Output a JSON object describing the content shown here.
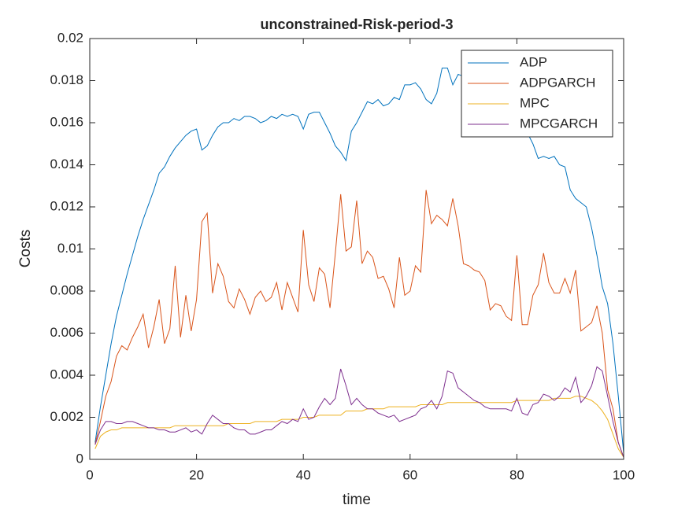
{
  "chart_data": {
    "type": "line",
    "title": "unconstrained-Risk-period-3",
    "x_label": "time",
    "y_label": "Costs",
    "x": [
      1,
      2,
      3,
      4,
      5,
      6,
      7,
      8,
      9,
      10,
      11,
      12,
      13,
      14,
      15,
      16,
      17,
      18,
      19,
      20,
      21,
      22,
      23,
      24,
      25,
      26,
      27,
      28,
      29,
      30,
      31,
      32,
      33,
      34,
      35,
      36,
      37,
      38,
      39,
      40,
      41,
      42,
      43,
      44,
      45,
      46,
      47,
      48,
      49,
      50,
      51,
      52,
      53,
      54,
      55,
      56,
      57,
      58,
      59,
      60,
      61,
      62,
      63,
      64,
      65,
      66,
      67,
      68,
      69,
      70,
      71,
      72,
      73,
      74,
      75,
      76,
      77,
      78,
      79,
      80,
      81,
      82,
      83,
      84,
      85,
      86,
      87,
      88,
      89,
      90,
      91,
      92,
      93,
      94,
      95,
      96,
      97,
      98,
      99,
      100
    ],
    "series": [
      {
        "name": "ADP",
        "color": "#0072bd",
        "values": [
          0.0008,
          0.0025,
          0.004,
          0.0055,
          0.0068,
          0.0078,
          0.0088,
          0.0097,
          0.0106,
          0.0114,
          0.0121,
          0.0128,
          0.0136,
          0.0139,
          0.0144,
          0.0148,
          0.0151,
          0.0154,
          0.0156,
          0.0157,
          0.0147,
          0.0149,
          0.0154,
          0.0158,
          0.016,
          0.016,
          0.0162,
          0.0161,
          0.0163,
          0.0163,
          0.0162,
          0.016,
          0.0161,
          0.0163,
          0.0162,
          0.0164,
          0.0163,
          0.0164,
          0.0163,
          0.0157,
          0.0164,
          0.0165,
          0.0165,
          0.016,
          0.0155,
          0.0149,
          0.0146,
          0.0142,
          0.0156,
          0.016,
          0.0165,
          0.017,
          0.0169,
          0.0171,
          0.0168,
          0.0169,
          0.0172,
          0.0171,
          0.0178,
          0.0178,
          0.0179,
          0.0176,
          0.0171,
          0.0169,
          0.0174,
          0.0186,
          0.0186,
          0.0178,
          0.0183,
          0.0182,
          0.019,
          0.0188,
          0.0185,
          0.0184,
          0.0182,
          0.018,
          0.0177,
          0.0172,
          0.0168,
          0.0165,
          0.016,
          0.0155,
          0.015,
          0.0143,
          0.0144,
          0.0143,
          0.0144,
          0.014,
          0.0139,
          0.0128,
          0.0124,
          0.0122,
          0.012,
          0.011,
          0.0097,
          0.0082,
          0.0074,
          0.0055,
          0.003,
          0.0003
        ]
      },
      {
        "name": "ADPGARCH",
        "color": "#d95319",
        "values": [
          0.0007,
          0.0018,
          0.003,
          0.0037,
          0.0049,
          0.0054,
          0.0052,
          0.0058,
          0.0063,
          0.0069,
          0.0053,
          0.0063,
          0.0076,
          0.0055,
          0.0062,
          0.0092,
          0.0058,
          0.0078,
          0.0061,
          0.0076,
          0.0113,
          0.0117,
          0.0079,
          0.0093,
          0.0087,
          0.0075,
          0.0072,
          0.0081,
          0.0076,
          0.0069,
          0.0077,
          0.008,
          0.0075,
          0.0077,
          0.0084,
          0.0071,
          0.0084,
          0.0077,
          0.007,
          0.0109,
          0.0083,
          0.0075,
          0.0091,
          0.0088,
          0.0072,
          0.0098,
          0.0126,
          0.0099,
          0.0101,
          0.0123,
          0.0093,
          0.0099,
          0.0096,
          0.0086,
          0.0087,
          0.0081,
          0.0072,
          0.0096,
          0.0078,
          0.008,
          0.0092,
          0.0089,
          0.0128,
          0.0112,
          0.0116,
          0.0114,
          0.0111,
          0.0124,
          0.0111,
          0.0093,
          0.0092,
          0.009,
          0.0089,
          0.0085,
          0.0071,
          0.0074,
          0.0073,
          0.0068,
          0.0066,
          0.0097,
          0.0064,
          0.0064,
          0.0078,
          0.0083,
          0.0098,
          0.0084,
          0.0079,
          0.0079,
          0.0086,
          0.0079,
          0.009,
          0.0061,
          0.0063,
          0.0065,
          0.0073,
          0.006,
          0.0033,
          0.0024,
          0.0008,
          0.0001
        ]
      },
      {
        "name": "MPC",
        "color": "#edb120",
        "values": [
          0.0005,
          0.0011,
          0.0013,
          0.0014,
          0.0014,
          0.0015,
          0.0015,
          0.0015,
          0.0015,
          0.0015,
          0.0015,
          0.0015,
          0.0015,
          0.0015,
          0.0015,
          0.0016,
          0.0016,
          0.0016,
          0.0016,
          0.0016,
          0.0016,
          0.0016,
          0.0016,
          0.0016,
          0.0016,
          0.0017,
          0.0017,
          0.0017,
          0.0017,
          0.0017,
          0.0018,
          0.0018,
          0.0018,
          0.0018,
          0.0018,
          0.0019,
          0.0019,
          0.0019,
          0.0019,
          0.002,
          0.002,
          0.002,
          0.0021,
          0.0021,
          0.0021,
          0.0021,
          0.0021,
          0.0023,
          0.0023,
          0.0023,
          0.0023,
          0.0024,
          0.0024,
          0.0024,
          0.0024,
          0.0025,
          0.0025,
          0.0025,
          0.0025,
          0.0025,
          0.0025,
          0.0026,
          0.0026,
          0.0026,
          0.0026,
          0.0026,
          0.0027,
          0.0027,
          0.0027,
          0.0027,
          0.0027,
          0.0027,
          0.0027,
          0.0027,
          0.0027,
          0.0027,
          0.0027,
          0.0027,
          0.0027,
          0.0028,
          0.0028,
          0.0028,
          0.0028,
          0.0028,
          0.0028,
          0.0028,
          0.0029,
          0.0029,
          0.0029,
          0.0029,
          0.003,
          0.003,
          0.0029,
          0.0028,
          0.0026,
          0.0023,
          0.0019,
          0.0012,
          0.0005,
          0.0001
        ]
      },
      {
        "name": "MPCGARCH",
        "color": "#7e2f8e",
        "values": [
          0.0007,
          0.0014,
          0.0018,
          0.0018,
          0.0017,
          0.0017,
          0.0018,
          0.0018,
          0.0017,
          0.0016,
          0.0015,
          0.0015,
          0.0014,
          0.0014,
          0.0013,
          0.0013,
          0.0014,
          0.0015,
          0.0013,
          0.0014,
          0.0012,
          0.0017,
          0.0021,
          0.0019,
          0.0017,
          0.0017,
          0.0015,
          0.0014,
          0.0014,
          0.0012,
          0.0012,
          0.0013,
          0.0014,
          0.0014,
          0.0016,
          0.0018,
          0.0017,
          0.0019,
          0.0018,
          0.0024,
          0.0019,
          0.002,
          0.0025,
          0.0029,
          0.0026,
          0.0029,
          0.0043,
          0.0035,
          0.0026,
          0.0029,
          0.0026,
          0.0024,
          0.0024,
          0.0022,
          0.0021,
          0.002,
          0.0021,
          0.0018,
          0.0019,
          0.002,
          0.0021,
          0.0024,
          0.0025,
          0.0028,
          0.0024,
          0.003,
          0.0042,
          0.0041,
          0.0034,
          0.0032,
          0.003,
          0.0028,
          0.0027,
          0.0025,
          0.0024,
          0.0024,
          0.0024,
          0.0024,
          0.0023,
          0.0029,
          0.0022,
          0.0021,
          0.0026,
          0.0027,
          0.0031,
          0.003,
          0.0028,
          0.003,
          0.0034,
          0.0032,
          0.0039,
          0.0027,
          0.003,
          0.0035,
          0.0044,
          0.0042,
          0.003,
          0.0018,
          0.0008,
          0.0001
        ]
      }
    ],
    "xlim": [
      0,
      100
    ],
    "xticks": [
      0,
      20,
      40,
      60,
      80,
      100
    ],
    "ylim": [
      0,
      0.02
    ],
    "yticks": [
      0,
      0.002,
      0.004,
      0.006,
      0.008,
      0.01,
      0.012,
      0.014,
      0.016,
      0.018,
      0.02
    ],
    "legend": "northeast"
  }
}
